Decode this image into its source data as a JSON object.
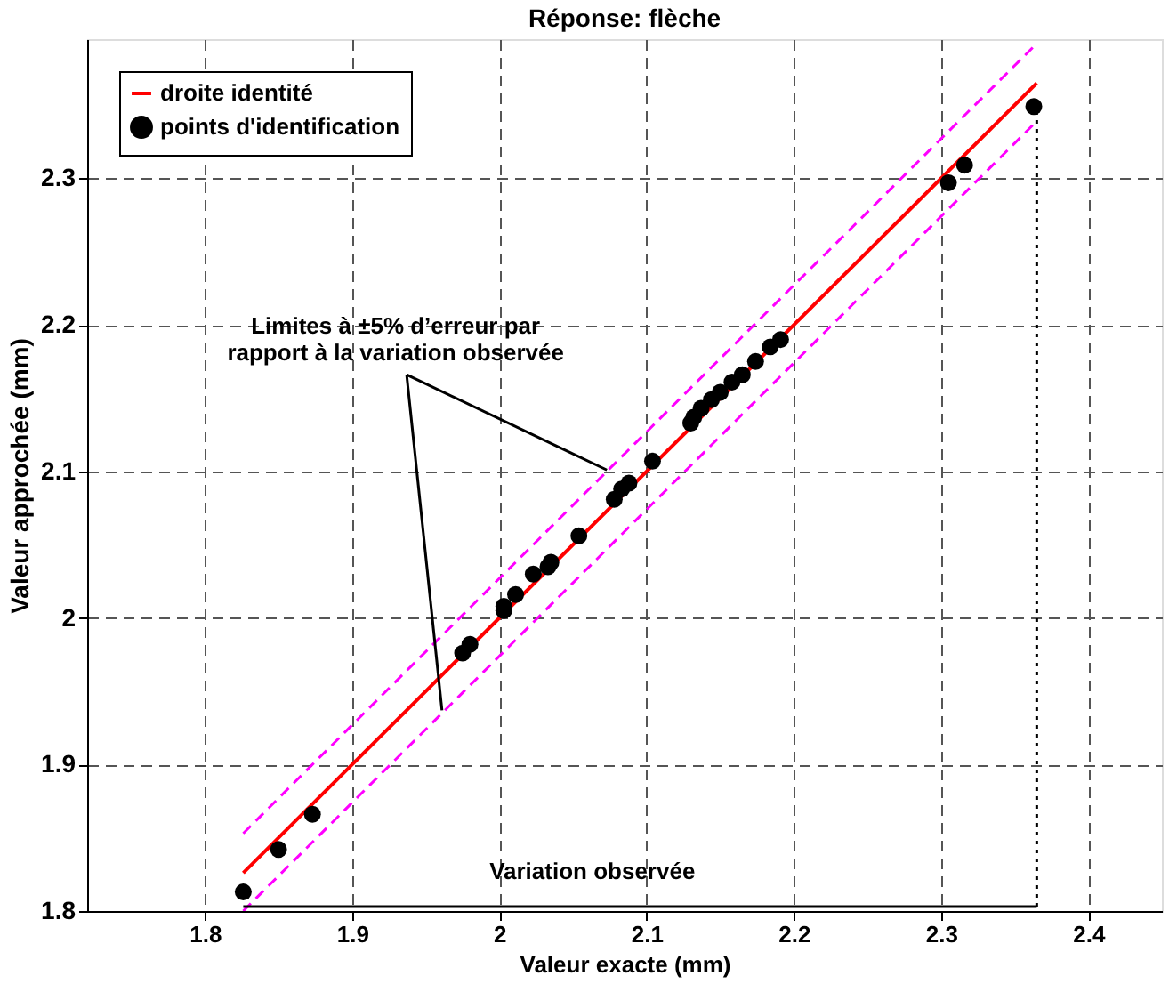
{
  "chart_data": {
    "type": "scatter",
    "title": "Réponse: flèche",
    "xlabel": "Valeur exacte (mm)",
    "ylabel": "Valeur approchée (mm)",
    "xlim": [
      1.72,
      2.45
    ],
    "ylim": [
      1.8,
      2.395
    ],
    "xticks": [
      1.8,
      1.9,
      2,
      2.1,
      2.2,
      2.3,
      2.4
    ],
    "yticks": [
      1.8,
      1.9,
      2,
      2.1,
      2.2,
      2.3
    ],
    "grid": true,
    "legend": "top left",
    "series": [
      {
        "name": "droite identité",
        "type": "line",
        "color": "#ff0000",
        "line_style": "solid",
        "x": [
          1.826,
          2.365
        ],
        "values": [
          1.826,
          2.365
        ]
      },
      {
        "name": "points d'identification",
        "marker": "circle",
        "color": "#000000",
        "x": [
          1.826,
          1.85,
          1.873,
          1.975,
          1.98,
          2.003,
          2.003,
          2.011,
          2.023,
          2.033,
          2.035,
          2.054,
          2.078,
          2.083,
          2.088,
          2.104,
          2.13,
          2.132,
          2.137,
          2.144,
          2.15,
          2.158,
          2.165,
          2.174,
          2.184,
          2.191,
          2.305,
          2.316,
          2.363
        ],
        "values": [
          1.813,
          1.842,
          1.866,
          1.976,
          1.982,
          2.008,
          2.005,
          2.016,
          2.03,
          2.035,
          2.038,
          2.056,
          2.081,
          2.088,
          2.092,
          2.107,
          2.133,
          2.137,
          2.143,
          2.149,
          2.154,
          2.161,
          2.166,
          2.175,
          2.185,
          2.19,
          2.297,
          2.309,
          2.349
        ]
      },
      {
        "type": "line",
        "color": "#ff00ff",
        "line_style": "dashed",
        "x": [
          1.826,
          2.365
        ],
        "values": [
          1.853,
          2.392
        ]
      },
      {
        "type": "line",
        "color": "#ff00ff",
        "line_style": "dashed",
        "x": [
          1.826,
          2.365
        ],
        "values": [
          1.8,
          2.339
        ]
      },
      {
        "type": "line",
        "color": "#000000",
        "line_style": "dotted",
        "x": [
          2.365,
          2.365
        ],
        "values": [
          1.803,
          2.349
        ]
      },
      {
        "type": "line",
        "color": "#000000",
        "line_style": "solid",
        "x": [
          1.826,
          2.365
        ],
        "values": [
          1.803,
          1.803
        ]
      },
      {
        "type": "line",
        "color": "#000000",
        "line_style": "solid",
        "x": [
          1.937,
          2.073
        ],
        "values": [
          2.166,
          2.101
        ]
      },
      {
        "type": "line",
        "color": "#000000",
        "line_style": "solid",
        "x": [
          1.937,
          1.961
        ],
        "values": [
          2.166,
          1.937
        ]
      }
    ],
    "annotations": [
      "Limites à ±5% d’erreur par\nrapport à la variation observée",
      "Variation observée"
    ]
  }
}
